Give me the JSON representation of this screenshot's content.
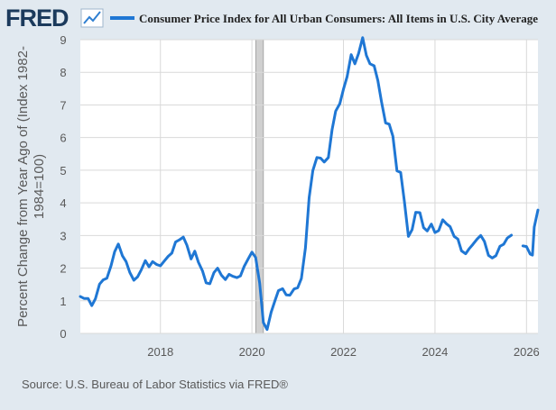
{
  "header": {
    "brand": "FRED",
    "legend_label": "Consumer Price Index for All Urban Consumers: All Items in U.S. City Average"
  },
  "footer": {
    "source": "Source: U.S. Bureau of Labor Statistics via FRED®"
  },
  "colors": {
    "background": "#e1e9f0",
    "plot_background": "#ffffff",
    "line": "#1f77d4",
    "grid": "#d9d9d9",
    "recession": "#d0d0d0",
    "text": "#595959",
    "brand": "#1b3a5c"
  },
  "icons": {
    "logo_graph": "line-graph-icon"
  },
  "chart_data": {
    "type": "line",
    "ylabel": "Percent Change from Year Ago of (Index 1982-1984=100)",
    "xlabel": "",
    "x_tick_labels": [
      "2018",
      "2020",
      "2022",
      "2024",
      "2026"
    ],
    "x_ticks": [
      2018,
      2020,
      2022,
      2024,
      2026
    ],
    "y_ticks": [
      0,
      1,
      2,
      3,
      4,
      5,
      6,
      7,
      8,
      9
    ],
    "xlim": [
      2016.25,
      2026.25
    ],
    "ylim": [
      0,
      9
    ],
    "grid": true,
    "legend": "top",
    "recession": {
      "start": 2020.083,
      "end": 2020.25
    },
    "series": [
      {
        "name": "Consumer Price Index for All Urban Consumers: All Items in U.S. City Average",
        "points": [
          [
            2016.25,
            1.13
          ],
          [
            2016.33,
            1.07
          ],
          [
            2016.42,
            1.07
          ],
          [
            2016.5,
            0.85
          ],
          [
            2016.58,
            1.06
          ],
          [
            2016.67,
            1.51
          ],
          [
            2016.75,
            1.64
          ],
          [
            2016.83,
            1.69
          ],
          [
            2016.92,
            2.07
          ],
          [
            2017.0,
            2.5
          ],
          [
            2017.08,
            2.74
          ],
          [
            2017.17,
            2.38
          ],
          [
            2017.25,
            2.2
          ],
          [
            2017.33,
            1.87
          ],
          [
            2017.42,
            1.63
          ],
          [
            2017.5,
            1.73
          ],
          [
            2017.58,
            1.94
          ],
          [
            2017.67,
            2.23
          ],
          [
            2017.75,
            2.04
          ],
          [
            2017.83,
            2.2
          ],
          [
            2017.92,
            2.11
          ],
          [
            2018.0,
            2.07
          ],
          [
            2018.08,
            2.21
          ],
          [
            2018.17,
            2.36
          ],
          [
            2018.25,
            2.46
          ],
          [
            2018.33,
            2.8
          ],
          [
            2018.42,
            2.87
          ],
          [
            2018.5,
            2.95
          ],
          [
            2018.58,
            2.7
          ],
          [
            2018.67,
            2.28
          ],
          [
            2018.75,
            2.52
          ],
          [
            2018.83,
            2.18
          ],
          [
            2018.92,
            1.91
          ],
          [
            2019.0,
            1.55
          ],
          [
            2019.08,
            1.52
          ],
          [
            2019.17,
            1.86
          ],
          [
            2019.25,
            2.0
          ],
          [
            2019.33,
            1.79
          ],
          [
            2019.42,
            1.65
          ],
          [
            2019.5,
            1.81
          ],
          [
            2019.58,
            1.75
          ],
          [
            2019.67,
            1.71
          ],
          [
            2019.75,
            1.76
          ],
          [
            2019.83,
            2.05
          ],
          [
            2019.92,
            2.29
          ],
          [
            2020.0,
            2.49
          ],
          [
            2020.08,
            2.33
          ],
          [
            2020.17,
            1.54
          ],
          [
            2020.25,
            0.33
          ],
          [
            2020.33,
            0.12
          ],
          [
            2020.42,
            0.65
          ],
          [
            2020.5,
            0.99
          ],
          [
            2020.58,
            1.31
          ],
          [
            2020.67,
            1.37
          ],
          [
            2020.75,
            1.18
          ],
          [
            2020.83,
            1.17
          ],
          [
            2020.92,
            1.36
          ],
          [
            2021.0,
            1.4
          ],
          [
            2021.08,
            1.68
          ],
          [
            2021.17,
            2.62
          ],
          [
            2021.25,
            4.16
          ],
          [
            2021.33,
            4.99
          ],
          [
            2021.42,
            5.39
          ],
          [
            2021.5,
            5.37
          ],
          [
            2021.58,
            5.25
          ],
          [
            2021.67,
            5.39
          ],
          [
            2021.75,
            6.24
          ],
          [
            2021.83,
            6.81
          ],
          [
            2021.92,
            7.04
          ],
          [
            2022.0,
            7.48
          ],
          [
            2022.08,
            7.87
          ],
          [
            2022.17,
            8.54
          ],
          [
            2022.25,
            8.26
          ],
          [
            2022.33,
            8.58
          ],
          [
            2022.42,
            9.06
          ],
          [
            2022.5,
            8.52
          ],
          [
            2022.58,
            8.26
          ],
          [
            2022.67,
            8.2
          ],
          [
            2022.75,
            7.75
          ],
          [
            2022.83,
            7.11
          ],
          [
            2022.92,
            6.45
          ],
          [
            2023.0,
            6.41
          ],
          [
            2023.08,
            6.04
          ],
          [
            2023.17,
            4.98
          ],
          [
            2023.25,
            4.93
          ],
          [
            2023.33,
            4.05
          ],
          [
            2023.42,
            2.97
          ],
          [
            2023.5,
            3.18
          ],
          [
            2023.58,
            3.71
          ],
          [
            2023.67,
            3.7
          ],
          [
            2023.75,
            3.24
          ],
          [
            2023.83,
            3.14
          ],
          [
            2023.92,
            3.35
          ],
          [
            2024.0,
            3.09
          ],
          [
            2024.08,
            3.15
          ],
          [
            2024.17,
            3.48
          ],
          [
            2024.25,
            3.36
          ],
          [
            2024.33,
            3.27
          ],
          [
            2024.42,
            2.97
          ],
          [
            2024.5,
            2.89
          ],
          [
            2024.58,
            2.53
          ],
          [
            2024.67,
            2.44
          ],
          [
            2024.75,
            2.6
          ],
          [
            2024.83,
            2.73
          ],
          [
            2024.92,
            2.89
          ],
          [
            2025.0,
            3.0
          ],
          [
            2025.08,
            2.82
          ],
          [
            2025.17,
            2.39
          ],
          [
            2025.25,
            2.31
          ],
          [
            2025.33,
            2.38
          ],
          [
            2025.42,
            2.67
          ],
          [
            2025.5,
            2.73
          ],
          [
            2025.58,
            2.92
          ],
          [
            2025.67,
            3.01
          ],
          null,
          [
            2025.92,
            2.68
          ],
          [
            2026.0,
            2.66
          ],
          [
            2026.08,
            2.43
          ],
          [
            2026.13,
            2.4
          ],
          [
            2026.17,
            3.26
          ],
          [
            2026.25,
            3.78
          ]
        ]
      }
    ]
  }
}
